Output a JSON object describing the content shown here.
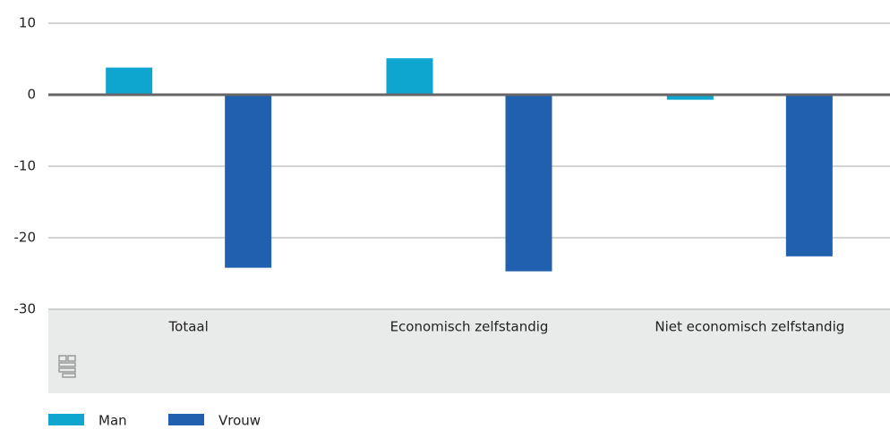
{
  "chart_data": {
    "type": "bar",
    "categories": [
      "Totaal",
      "Economisch zelfstandig",
      "Niet economisch zelfstandig"
    ],
    "series": [
      {
        "name": "Man",
        "color": "#0ea5cf",
        "values": [
          3.8,
          5.1,
          -0.7
        ]
      },
      {
        "name": "Vrouw",
        "color": "#2160ae",
        "values": [
          -24.2,
          -24.7,
          -22.6
        ]
      }
    ],
    "ylim": [
      -30,
      10
    ],
    "yticks": [
      -30,
      -20,
      -10,
      0,
      10
    ],
    "grid": true,
    "legend": "bottom"
  }
}
